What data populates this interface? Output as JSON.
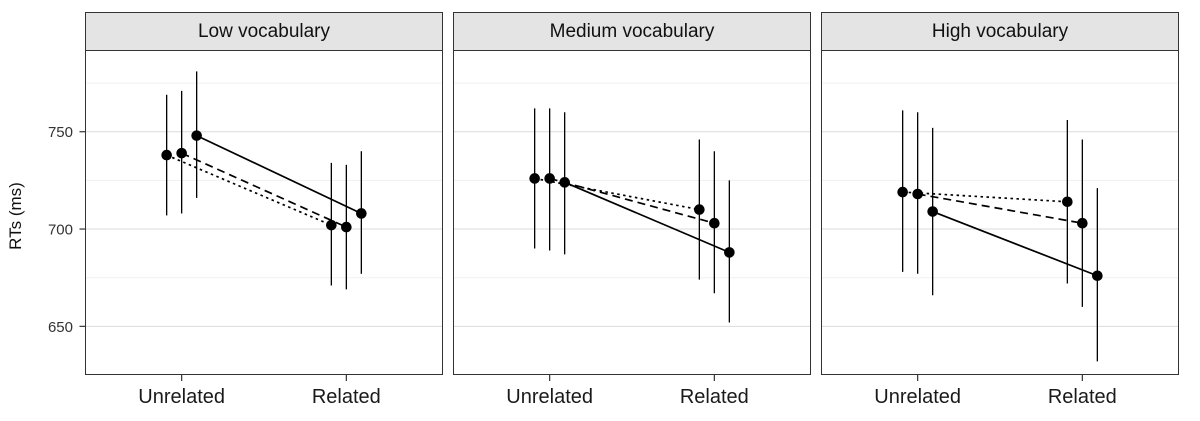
{
  "chart_data": {
    "type": "line",
    "title": "",
    "ylabel": "RTs (ms)",
    "categories": [
      "Unrelated",
      "Related"
    ],
    "ylim": [
      625,
      792
    ],
    "yticks": [
      650,
      700,
      750
    ],
    "yticks_minor": [
      675,
      725,
      775
    ],
    "grid": "horizontal-major-and-minor",
    "legend": "none",
    "point_color": "#000000",
    "line_color": "#000000",
    "facets": [
      {
        "title": "Low vocabulary",
        "series": [
          {
            "name": "dotted",
            "linestyle": "dotted",
            "points": [
              {
                "category": "Unrelated",
                "y": 738,
                "err_lo": 707,
                "err_hi": 769
              },
              {
                "category": "Related",
                "y": 702,
                "err_lo": 671,
                "err_hi": 734
              }
            ]
          },
          {
            "name": "dashed",
            "linestyle": "dashed",
            "points": [
              {
                "category": "Unrelated",
                "y": 739,
                "err_lo": 708,
                "err_hi": 771
              },
              {
                "category": "Related",
                "y": 701,
                "err_lo": 669,
                "err_hi": 733
              }
            ]
          },
          {
            "name": "solid",
            "linestyle": "solid",
            "points": [
              {
                "category": "Unrelated",
                "y": 748,
                "err_lo": 716,
                "err_hi": 781
              },
              {
                "category": "Related",
                "y": 708,
                "err_lo": 677,
                "err_hi": 740
              }
            ]
          }
        ]
      },
      {
        "title": "Medium vocabulary",
        "series": [
          {
            "name": "dotted",
            "linestyle": "dotted",
            "points": [
              {
                "category": "Unrelated",
                "y": 726,
                "err_lo": 690,
                "err_hi": 762
              },
              {
                "category": "Related",
                "y": 710,
                "err_lo": 674,
                "err_hi": 746
              }
            ]
          },
          {
            "name": "dashed",
            "linestyle": "dashed",
            "points": [
              {
                "category": "Unrelated",
                "y": 726,
                "err_lo": 689,
                "err_hi": 762
              },
              {
                "category": "Related",
                "y": 703,
                "err_lo": 667,
                "err_hi": 740
              }
            ]
          },
          {
            "name": "solid",
            "linestyle": "solid",
            "points": [
              {
                "category": "Unrelated",
                "y": 724,
                "err_lo": 687,
                "err_hi": 760
              },
              {
                "category": "Related",
                "y": 688,
                "err_lo": 652,
                "err_hi": 725
              }
            ]
          }
        ]
      },
      {
        "title": "High vocabulary",
        "series": [
          {
            "name": "dotted",
            "linestyle": "dotted",
            "points": [
              {
                "category": "Unrelated",
                "y": 719,
                "err_lo": 678,
                "err_hi": 761
              },
              {
                "category": "Related",
                "y": 714,
                "err_lo": 672,
                "err_hi": 756
              }
            ]
          },
          {
            "name": "dashed",
            "linestyle": "dashed",
            "points": [
              {
                "category": "Unrelated",
                "y": 718,
                "err_lo": 677,
                "err_hi": 760
              },
              {
                "category": "Related",
                "y": 703,
                "err_lo": 660,
                "err_hi": 746
              }
            ]
          },
          {
            "name": "solid",
            "linestyle": "solid",
            "points": [
              {
                "category": "Unrelated",
                "y": 709,
                "err_lo": 666,
                "err_hi": 752
              },
              {
                "category": "Related",
                "y": 676,
                "err_lo": 632,
                "err_hi": 721
              }
            ]
          }
        ]
      }
    ]
  }
}
